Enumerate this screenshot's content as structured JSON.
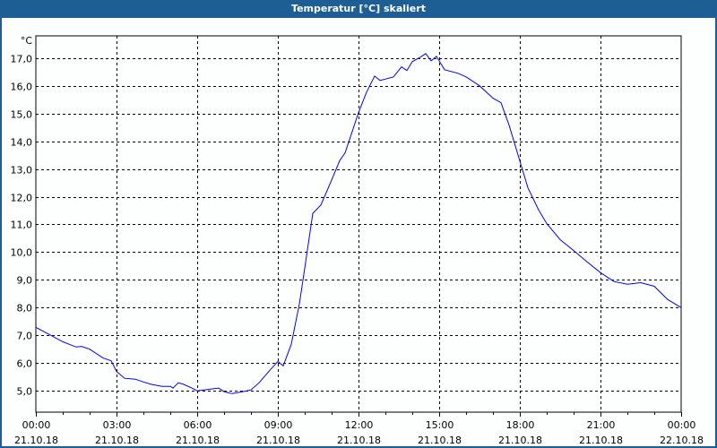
{
  "window": {
    "title": "Temperatur [°C] skaliert"
  },
  "chart_data": {
    "type": "line",
    "title": "Temperatur [°C] skaliert",
    "ylabel": "°C",
    "xlabel": "",
    "ylim": [
      4.23,
      17.8
    ],
    "xlim_hours": [
      0,
      24
    ],
    "grid": true,
    "line_color": "#0000ff",
    "y_ticks": [
      5,
      6,
      7,
      8,
      9,
      10,
      11,
      12,
      13,
      14,
      15,
      16,
      17
    ],
    "y_tick_labels": [
      "5,0",
      "6,0",
      "7,0",
      "8,0",
      "9,0",
      "10,0",
      "11,0",
      "12,0",
      "13,0",
      "14,0",
      "15,0",
      "16,0",
      "17,0"
    ],
    "x_ticks": [
      {
        "time": "00:00",
        "date": "21.10.18"
      },
      {
        "time": "03:00",
        "date": "21.10.18"
      },
      {
        "time": "06:00",
        "date": "21.10.18"
      },
      {
        "time": "09:00",
        "date": "21.10.18"
      },
      {
        "time": "12:00",
        "date": "21.10.18"
      },
      {
        "time": "15:00",
        "date": "21.10.18"
      },
      {
        "time": "18:00",
        "date": "21.10.18"
      },
      {
        "time": "21:00",
        "date": "21.10.18"
      },
      {
        "time": "00:00",
        "date": "22.10.18"
      }
    ],
    "series": [
      {
        "x": [
          0,
          0.5,
          1,
          1.5,
          1.7,
          2,
          2.5,
          2.8,
          3,
          3.3,
          3.7,
          4,
          4.3,
          4.7,
          5,
          5.1,
          5.3,
          5.5,
          5.8,
          6,
          6.5,
          6.8,
          7,
          7.3,
          7.7,
          8,
          8.3,
          8.7,
          9,
          9.2,
          9.5,
          9.8,
          10,
          10.3,
          10.6,
          11,
          11.3,
          11.5,
          12,
          12.3,
          12.6,
          12.8,
          13.3,
          13.6,
          13.8,
          14,
          14.3,
          14.5,
          14.7,
          14.9,
          15,
          15.2,
          15.7,
          16,
          16.5,
          17,
          17.3,
          17.6,
          18,
          18.3,
          18.7,
          19,
          19.5,
          20,
          20.5,
          21,
          21.5,
          22,
          22.5,
          23,
          23.5,
          24
        ],
        "y": [
          7.29,
          7.03,
          6.77,
          6.58,
          6.6,
          6.5,
          6.18,
          6.08,
          5.7,
          5.45,
          5.42,
          5.32,
          5.23,
          5.16,
          5.16,
          5.1,
          5.29,
          5.23,
          5.1,
          5.0,
          5.06,
          5.1,
          4.97,
          4.9,
          4.97,
          5.03,
          5.29,
          5.74,
          6.06,
          5.9,
          6.68,
          8.13,
          9.42,
          11.4,
          11.7,
          12.6,
          13.3,
          13.58,
          15.03,
          15.77,
          16.35,
          16.19,
          16.32,
          16.68,
          16.55,
          16.87,
          17.03,
          17.16,
          16.9,
          17.06,
          16.9,
          16.58,
          16.45,
          16.32,
          16.0,
          15.55,
          15.39,
          14.58,
          13.29,
          12.32,
          11.52,
          11.03,
          10.45,
          10.06,
          9.65,
          9.26,
          8.94,
          8.84,
          8.9,
          8.77,
          8.29,
          8.0
        ]
      }
    ]
  }
}
